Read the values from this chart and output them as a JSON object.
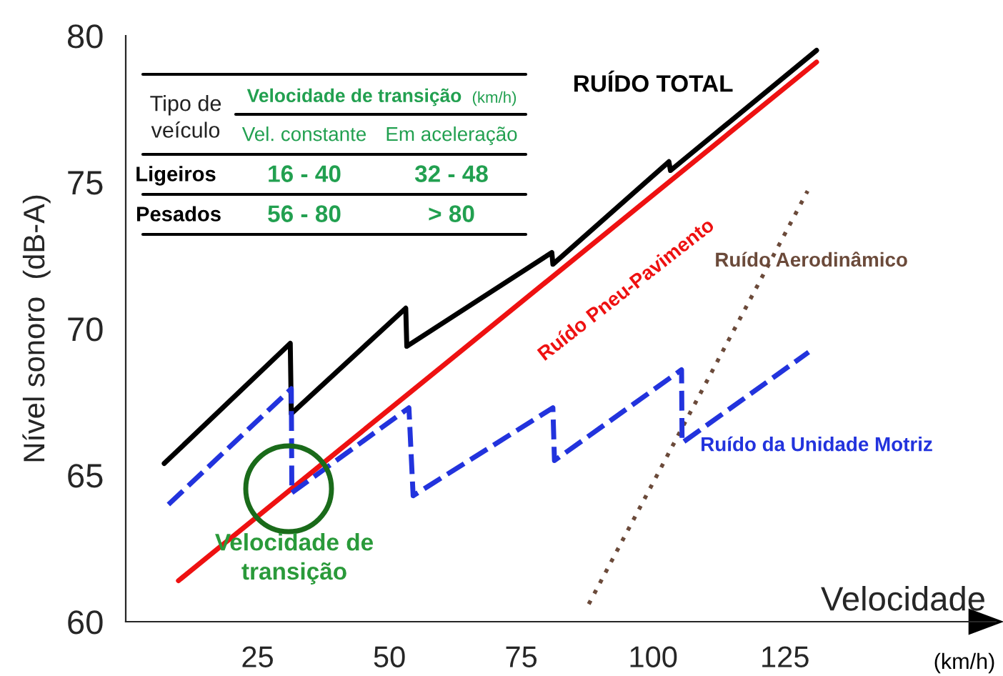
{
  "chart_data": {
    "type": "line",
    "xlabel": "Velocidade",
    "ylabel": "Nível sonoro  (dB-A)",
    "xlim": [
      0,
      165
    ],
    "ylim": [
      60,
      80
    ],
    "xticks": [
      25,
      50,
      75,
      100,
      125
    ],
    "yticks": [
      60,
      65,
      70,
      75,
      80
    ],
    "grid": false,
    "legend": false,
    "marker": "none",
    "series": [
      {
        "name": "RUÍDO TOTAL",
        "color": "#000000",
        "line_style": "solid",
        "x": [
          7.3,
          31.2,
          31.4,
          53.1,
          53.3,
          80.8,
          81.0,
          103.0,
          103.3,
          131.0
        ],
        "values": [
          65.4,
          69.5,
          67.1,
          70.7,
          69.4,
          72.6,
          72.2,
          75.7,
          75.4,
          79.5
        ]
      },
      {
        "name": "Ruído Pneu-Pavimento",
        "color": "#ee1111",
        "line_style": "solid",
        "x": [
          10.0,
          131.0
        ],
        "values": [
          61.4,
          79.1
        ]
      },
      {
        "name": "Ruído Aerodinâmico",
        "color": "#6b4a3a",
        "line_style": "dotted",
        "x": [
          87.8,
          129.3
        ],
        "values": [
          60.6,
          74.7
        ]
      },
      {
        "name": "Ruído da Unidade Motriz",
        "color": "#2233dd",
        "line_style": "dashed",
        "x": [
          8.1,
          31.4,
          31.5,
          53.7,
          54.5,
          81.0,
          81.3,
          105.4,
          105.5,
          129.5
        ],
        "values": [
          64.0,
          67.95,
          64.4,
          67.3,
          64.3,
          67.3,
          65.5,
          68.6,
          66.1,
          69.2
        ]
      }
    ],
    "annotations": [
      "Tipo de\nveículo",
      "Velocidade de transição",
      "(km/h)",
      "Vel. constante",
      "Em aceleração",
      "Ligeiros",
      "16 - 40",
      "32 - 48",
      "Pesados",
      "56 - 80",
      "> 80",
      "(km/h)",
      "Velocidade de\ntransição"
    ]
  }
}
